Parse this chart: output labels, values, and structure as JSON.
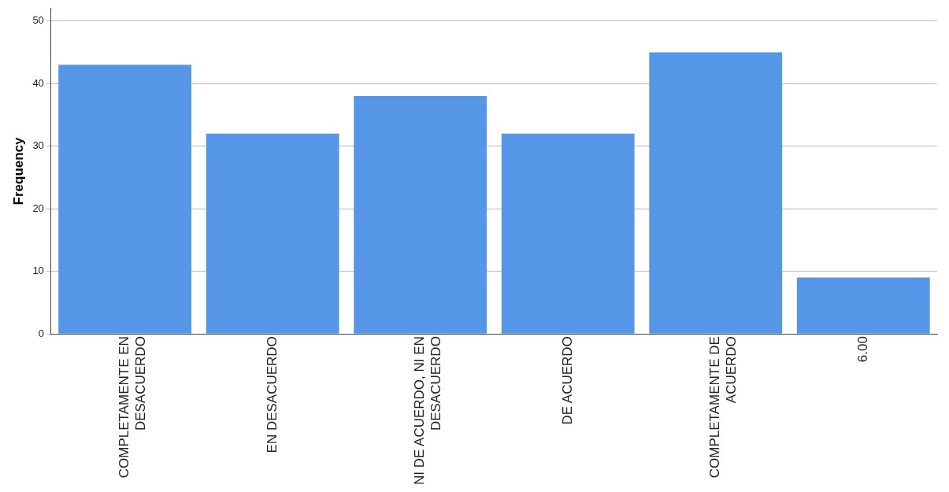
{
  "chart_data": {
    "type": "bar",
    "ylabel": "Frequency",
    "categories": [
      "COMPLETAMENTE EN DESACUERDO",
      "EN DESACUERDO",
      "NI DE ACUERDO, NI EN DESACUERDO",
      "DE ACUERDO",
      "COMPLETAMENTE DE ACUERDO",
      "6.00"
    ],
    "values": [
      43,
      32,
      38,
      32,
      45,
      9
    ],
    "color": "#5596e6",
    "ylim": [
      0,
      52
    ],
    "yticks": [
      0,
      10,
      20,
      30,
      40,
      50
    ],
    "grid": "y",
    "legend": false
  }
}
